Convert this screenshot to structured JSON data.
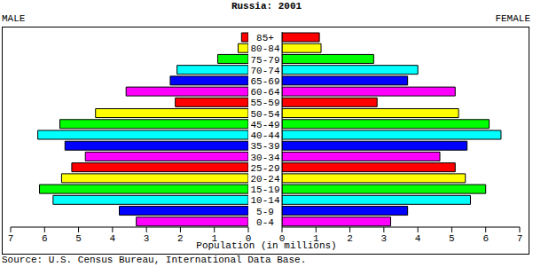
{
  "chart_data": {
    "type": "bar",
    "orientation": "horizontal",
    "title": "Russia: 2001",
    "x_label": "Population (in millions)",
    "annotations": [
      "Source: U.S. Census Bureau, International Data Base."
    ],
    "categories": [
      "0-4",
      "5-9",
      "10-14",
      "15-19",
      "20-24",
      "25-29",
      "30-34",
      "35-39",
      "40-44",
      "45-49",
      "50-54",
      "55-59",
      "60-64",
      "65-69",
      "70-74",
      "75-79",
      "80-84",
      "85+"
    ],
    "series": [
      {
        "name": "MALE",
        "values": [
          3.3,
          3.8,
          5.75,
          6.15,
          5.5,
          5.2,
          4.8,
          5.4,
          6.2,
          5.55,
          4.5,
          2.15,
          3.6,
          2.3,
          2.1,
          0.9,
          0.3,
          0.2
        ],
        "colors": [
          "#ff00ff",
          "#0000ff",
          "#00ffff",
          "#00ff00",
          "#ffff00",
          "#ff0000",
          "#ff00ff",
          "#0000ff",
          "#00ffff",
          "#00ff00",
          "#ffff00",
          "#ff0000",
          "#ff00ff",
          "#0000ff",
          "#00ffff",
          "#00ff00",
          "#ffff00",
          "#ff0000"
        ]
      },
      {
        "name": "FEMALE",
        "values": [
          3.2,
          3.7,
          5.55,
          6.0,
          5.4,
          5.1,
          4.65,
          5.45,
          6.45,
          6.1,
          5.2,
          2.8,
          5.1,
          3.7,
          4.0,
          2.7,
          1.15,
          1.1
        ],
        "colors": [
          "#ff00ff",
          "#0000ff",
          "#00ffff",
          "#00ff00",
          "#ffff00",
          "#ff0000",
          "#ff00ff",
          "#0000ff",
          "#00ffff",
          "#00ff00",
          "#ffff00",
          "#ff0000",
          "#ff00ff",
          "#0000ff",
          "#00ffff",
          "#00ff00",
          "#ffff00",
          "#ff0000"
        ]
      }
    ],
    "xlim": [
      0,
      7
    ],
    "xticks": [
      0,
      1,
      2,
      3,
      4,
      5,
      6,
      7
    ]
  }
}
